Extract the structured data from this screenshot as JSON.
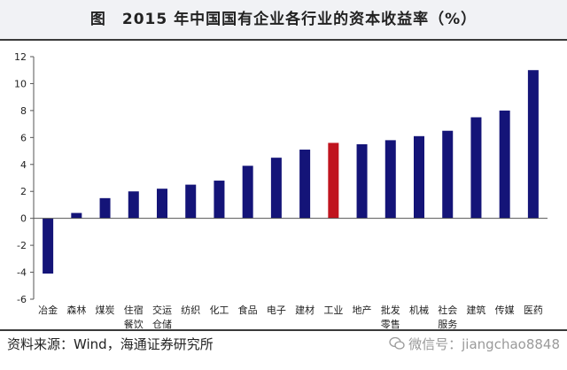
{
  "title": "图　2015 年中国国有企业各行业的资本收益率（%）",
  "source": "资料来源：Wind，海通证券研究所",
  "watermark": "微信号：jiangchao8848",
  "colors": {
    "bar": "#141478",
    "highlight": "#c0141e"
  },
  "chart_data": {
    "type": "bar",
    "categories": [
      [
        "冶金"
      ],
      [
        "森林"
      ],
      [
        "煤炭"
      ],
      [
        "住宿",
        "餐饮"
      ],
      [
        "交运",
        "仓储"
      ],
      [
        "纺织"
      ],
      [
        "化工"
      ],
      [
        "食品"
      ],
      [
        "电子"
      ],
      [
        "建材"
      ],
      [
        "工业"
      ],
      [
        "地产"
      ],
      [
        "批发",
        "零售"
      ],
      [
        "机械"
      ],
      [
        "社会",
        "服务"
      ],
      [
        "建筑"
      ],
      [
        "传媒"
      ],
      [
        "医药"
      ]
    ],
    "values": [
      -4.1,
      0.4,
      1.5,
      2.0,
      2.2,
      2.5,
      2.8,
      3.9,
      4.5,
      5.1,
      5.6,
      5.5,
      5.8,
      6.1,
      6.5,
      7.5,
      8.0,
      11.0
    ],
    "highlight_index": 10,
    "ylim": [
      -6,
      12
    ],
    "yticks": [
      -6,
      -4,
      -2,
      0,
      2,
      4,
      6,
      8,
      10,
      12
    ],
    "xlabel": "",
    "ylabel": ""
  }
}
